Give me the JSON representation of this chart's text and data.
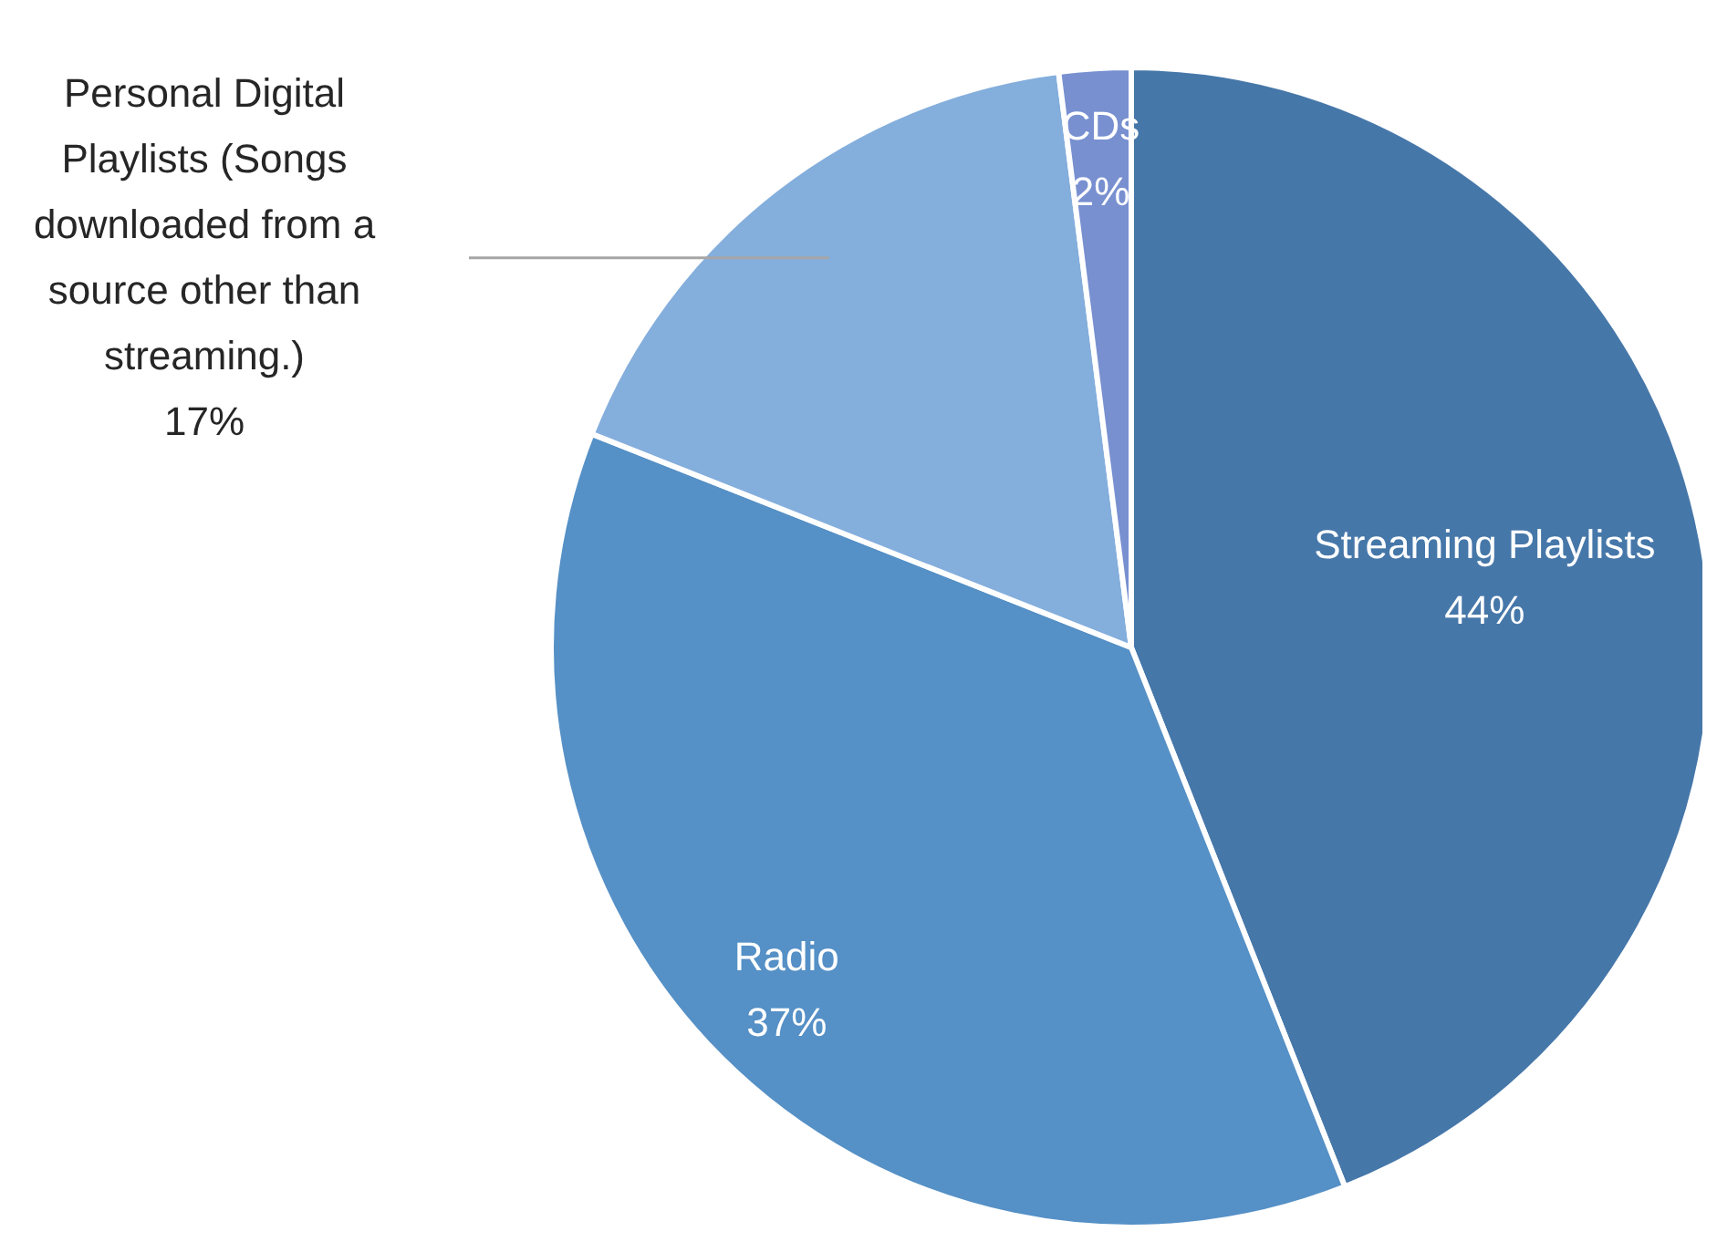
{
  "chart_data": {
    "type": "pie",
    "categories": [
      "Streaming Playlists",
      "Radio",
      "Personal Digital Playlists (Songs downloaded from a source other than streaming.)",
      "CDs"
    ],
    "values": [
      44,
      37,
      17,
      2
    ],
    "colors": [
      "#4677a9",
      "#5590c6",
      "#84aedc",
      "#7890d0"
    ],
    "value_labels": [
      "44%",
      "37%",
      "17%",
      "2%"
    ],
    "legend": false
  }
}
